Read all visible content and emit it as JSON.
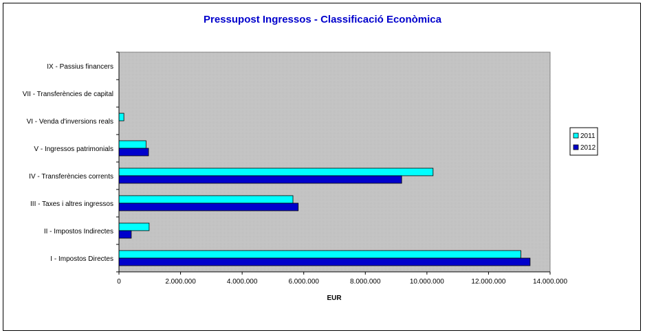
{
  "chart_data": {
    "type": "bar",
    "orientation": "horizontal",
    "title": "Pressupost Ingressos - Classificació Econòmica",
    "xlabel": "EUR",
    "ylabel": "",
    "xlim": [
      0,
      14000000
    ],
    "x_ticks": [
      "0",
      "2.000.000",
      "4.000.000",
      "6.000.000",
      "8.000.000",
      "10.000.000",
      "12.000.000",
      "14.000.000"
    ],
    "grid": false,
    "legend_position": "right",
    "categories": [
      "I - Impostos Directes",
      "II - Impostos Indirectes",
      "III - Taxes i altres ingressos",
      "IV - Transferències corrents",
      "V - Ingressos patrimonials",
      "VI - Venda d'inversions reals",
      "VII - Transferències de capital",
      "IX - Passius financers"
    ],
    "series": [
      {
        "name": "2011",
        "color": "#00ffff",
        "values": [
          13050000,
          980000,
          5650000,
          10200000,
          880000,
          160000,
          0,
          0
        ]
      },
      {
        "name": "2012",
        "color": "#0000cc",
        "values": [
          13350000,
          400000,
          5820000,
          9180000,
          960000,
          0,
          0,
          0
        ]
      }
    ]
  }
}
